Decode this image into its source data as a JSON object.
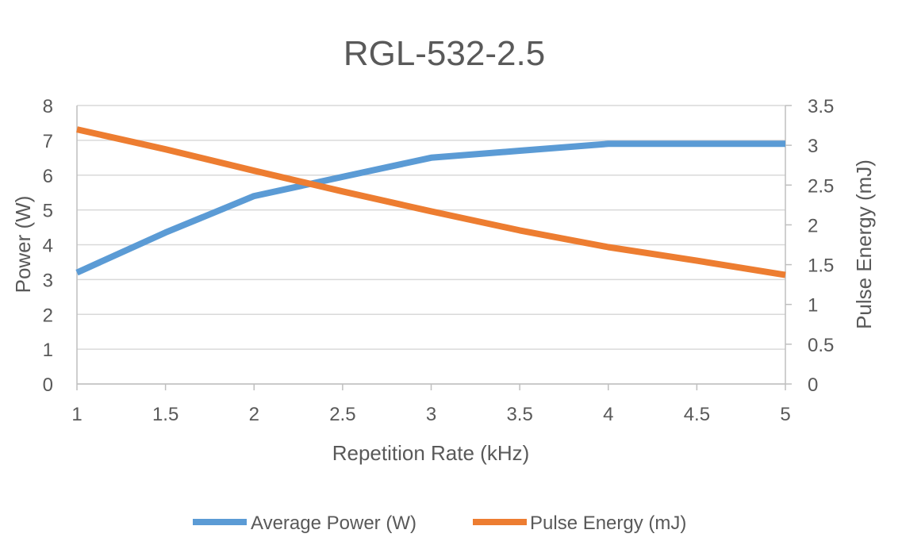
{
  "chart_data": {
    "type": "line",
    "title": "RGL-532-2.5",
    "xlabel": "Repetition Rate (kHz)",
    "ylabel_left": "Power (W)",
    "ylabel_right": "Pulse Energy (mJ)",
    "xlim": [
      1,
      5
    ],
    "ylim_left": [
      0,
      8
    ],
    "ylim_right": [
      0,
      3.5
    ],
    "x_ticks": [
      "1",
      "1.5",
      "2",
      "2.5",
      "3",
      "3.5",
      "4",
      "4.5",
      "5"
    ],
    "y_ticks_left": [
      "0",
      "1",
      "2",
      "3",
      "4",
      "5",
      "6",
      "7",
      "8"
    ],
    "y_ticks_right": [
      "0",
      "0.5",
      "1",
      "1.5",
      "2",
      "2.5",
      "3",
      "3.5"
    ],
    "grid": true,
    "legend_position": "bottom",
    "series": [
      {
        "name": "Average Power (W)",
        "axis": "left",
        "color": "#5b9bd5",
        "x": [
          1,
          1.5,
          2,
          2.5,
          3,
          3.5,
          4,
          4.5,
          5
        ],
        "values": [
          3.2,
          4.35,
          5.4,
          5.95,
          6.5,
          6.7,
          6.9,
          6.9,
          6.9
        ]
      },
      {
        "name": "Pulse Energy (mJ)",
        "axis": "right",
        "color": "#ed7d31",
        "x": [
          1,
          1.5,
          2,
          2.5,
          3,
          3.5,
          4,
          4.5,
          5
        ],
        "values": [
          3.2,
          2.95,
          2.68,
          2.42,
          2.17,
          1.93,
          1.72,
          1.55,
          1.37
        ]
      }
    ]
  }
}
